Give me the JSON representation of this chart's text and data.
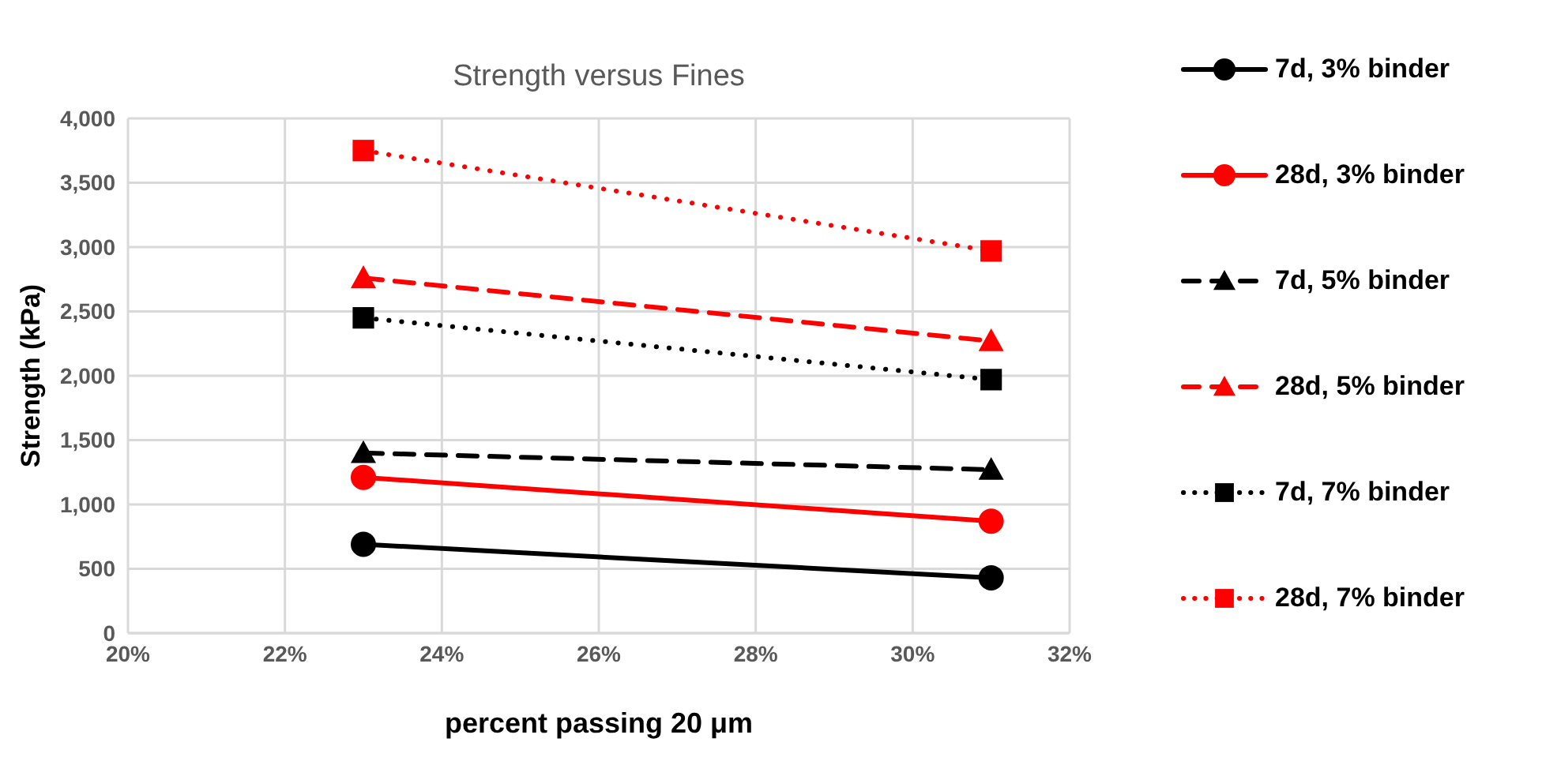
{
  "chart_data": {
    "type": "line",
    "title": "Strength versus Fines",
    "xlabel": "percent passing 20 μm",
    "ylabel": "Strength (kPa)",
    "x": [
      23,
      31
    ],
    "xlim": [
      20,
      32
    ],
    "xticks": [
      {
        "value": 20,
        "label": "20%"
      },
      {
        "value": 22,
        "label": "22%"
      },
      {
        "value": 24,
        "label": "24%"
      },
      {
        "value": 26,
        "label": "26%"
      },
      {
        "value": 28,
        "label": "28%"
      },
      {
        "value": 30,
        "label": "30%"
      },
      {
        "value": 32,
        "label": "32%"
      }
    ],
    "ylim": [
      0,
      4000
    ],
    "yticks": [
      {
        "value": 0,
        "label": "0"
      },
      {
        "value": 500,
        "label": "500"
      },
      {
        "value": 1000,
        "label": "1,000"
      },
      {
        "value": 1500,
        "label": "1,500"
      },
      {
        "value": 2000,
        "label": "2,000"
      },
      {
        "value": 2500,
        "label": "2,500"
      },
      {
        "value": 3000,
        "label": "3,000"
      },
      {
        "value": 3500,
        "label": "3,500"
      },
      {
        "value": 4000,
        "label": "4,000"
      }
    ],
    "grid": true,
    "legend": "right",
    "series": [
      {
        "name": "7d, 3% binder",
        "color": "#000000",
        "values": [
          690,
          430
        ],
        "marker": "circle",
        "line_style": "solid"
      },
      {
        "name": "28d, 3% binder",
        "color": "#ff0000",
        "values": [
          1210,
          870
        ],
        "marker": "circle",
        "line_style": "solid"
      },
      {
        "name": "7d, 5% binder",
        "color": "#000000",
        "values": [
          1400,
          1270
        ],
        "marker": "triangle",
        "line_style": "dashed"
      },
      {
        "name": "28d, 5% binder",
        "color": "#ff0000",
        "values": [
          2760,
          2270
        ],
        "marker": "triangle",
        "line_style": "dashed"
      },
      {
        "name": "7d, 7% binder",
        "color": "#000000",
        "values": [
          2450,
          1970
        ],
        "marker": "square",
        "line_style": "dotted"
      },
      {
        "name": "28d, 7% binder",
        "color": "#ff0000",
        "values": [
          3750,
          2970
        ],
        "marker": "square",
        "line_style": "dotted"
      }
    ]
  }
}
